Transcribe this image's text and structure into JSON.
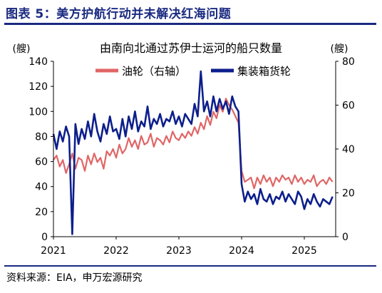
{
  "figure_title": "图表 5：美方护航行动并未解决红海问题",
  "source": "资料来源：EIA，申万宏源研究",
  "chart_data": {
    "type": "line",
    "title": "由南向北通过苏伊士运河的船只数量",
    "left_unit": "(艘)",
    "right_unit": "(艘)",
    "left_ylim": [
      0,
      140
    ],
    "left_ticks": [
      "0",
      "20",
      "40",
      "60",
      "80",
      "100",
      "120",
      "140"
    ],
    "right_ylim": [
      0,
      80
    ],
    "right_ticks": [
      "0",
      "20",
      "40",
      "60",
      "80"
    ],
    "xlim": [
      2021.0,
      2025.5
    ],
    "x_ticks": [
      {
        "value": 2021,
        "label": "2021"
      },
      {
        "value": 2022,
        "label": "2022"
      },
      {
        "value": 2023,
        "label": "2023"
      },
      {
        "value": 2024,
        "label": "2024"
      },
      {
        "value": 2025,
        "label": "2025"
      }
    ],
    "colors": {
      "tanker": "#e06666",
      "container": "#0d1f8c",
      "axis": "#000000"
    },
    "series": [
      {
        "name": "油轮（右轴）",
        "axis": "right",
        "x": [
          2021.0,
          2021.05,
          2021.1,
          2021.15,
          2021.2,
          2021.25,
          2021.3,
          2021.35,
          2021.4,
          2021.45,
          2021.5,
          2021.55,
          2021.6,
          2021.65,
          2021.7,
          2021.75,
          2021.8,
          2021.85,
          2021.9,
          2021.95,
          2022.0,
          2022.05,
          2022.1,
          2022.15,
          2022.2,
          2022.25,
          2022.3,
          2022.35,
          2022.4,
          2022.45,
          2022.5,
          2022.55,
          2022.6,
          2022.65,
          2022.7,
          2022.75,
          2022.8,
          2022.85,
          2022.9,
          2022.95,
          2023.0,
          2023.05,
          2023.1,
          2023.15,
          2023.2,
          2023.25,
          2023.3,
          2023.35,
          2023.4,
          2023.45,
          2023.5,
          2023.55,
          2023.6,
          2023.65,
          2023.7,
          2023.75,
          2023.8,
          2023.85,
          2023.9,
          2023.95,
          2024.0,
          2024.05,
          2024.1,
          2024.15,
          2024.2,
          2024.25,
          2024.3,
          2024.35,
          2024.4,
          2024.45,
          2024.5,
          2024.55,
          2024.6,
          2024.65,
          2024.7,
          2024.75,
          2024.8,
          2024.85,
          2024.9,
          2024.95,
          2025.0,
          2025.05,
          2025.1,
          2025.15,
          2025.2,
          2025.25,
          2025.3,
          2025.35,
          2025.4,
          2025.45
        ],
        "values": [
          35,
          37,
          32,
          35,
          29,
          33,
          38,
          31,
          36,
          35,
          30,
          37,
          33,
          38,
          34,
          36,
          31,
          39,
          37,
          40,
          36,
          42,
          38,
          40,
          45,
          41,
          44,
          40,
          46,
          42,
          43,
          47,
          41,
          45,
          44,
          42,
          46,
          43,
          48,
          45,
          44,
          47,
          45,
          48,
          46,
          50,
          47,
          52,
          49,
          55,
          51,
          57,
          54,
          60,
          57,
          63,
          60,
          58,
          55,
          52,
          30,
          25,
          26,
          27,
          22,
          27,
          24,
          28,
          25,
          27,
          23,
          27,
          25,
          28,
          26,
          27,
          24,
          28,
          25,
          27,
          24,
          26,
          25,
          28,
          23,
          25,
          26,
          24,
          27,
          25
        ]
      },
      {
        "name": "集装箱货轮",
        "axis": "left",
        "x": [
          2021.0,
          2021.05,
          2021.1,
          2021.15,
          2021.2,
          2021.25,
          2021.3,
          2021.35,
          2021.4,
          2021.45,
          2021.5,
          2021.55,
          2021.6,
          2021.65,
          2021.7,
          2021.75,
          2021.8,
          2021.85,
          2021.9,
          2021.95,
          2022.0,
          2022.05,
          2022.1,
          2022.15,
          2022.2,
          2022.25,
          2022.3,
          2022.35,
          2022.4,
          2022.45,
          2022.5,
          2022.55,
          2022.6,
          2022.65,
          2022.7,
          2022.75,
          2022.8,
          2022.85,
          2022.9,
          2022.95,
          2023.0,
          2023.05,
          2023.1,
          2023.15,
          2023.2,
          2023.25,
          2023.3,
          2023.35,
          2023.4,
          2023.45,
          2023.5,
          2023.55,
          2023.6,
          2023.65,
          2023.7,
          2023.75,
          2023.8,
          2023.85,
          2023.9,
          2023.95,
          2024.0,
          2024.05,
          2024.1,
          2024.15,
          2024.2,
          2024.25,
          2024.3,
          2024.35,
          2024.4,
          2024.45,
          2024.5,
          2024.55,
          2024.6,
          2024.65,
          2024.7,
          2024.75,
          2024.8,
          2024.85,
          2024.9,
          2024.95,
          2025.0,
          2025.05,
          2025.1,
          2025.15,
          2025.2,
          2025.25,
          2025.3,
          2025.35,
          2025.4,
          2025.45
        ],
        "values": [
          82,
          70,
          84,
          76,
          88,
          80,
          2,
          90,
          74,
          86,
          78,
          92,
          80,
          98,
          84,
          76,
          90,
          82,
          96,
          84,
          86,
          78,
          94,
          80,
          96,
          86,
          100,
          84,
          92,
          88,
          104,
          86,
          94,
          90,
          98,
          88,
          94,
          92,
          100,
          90,
          96,
          88,
          98,
          94,
          90,
          106,
          96,
          132,
          100,
          108,
          96,
          112,
          100,
          110,
          102,
          108,
          98,
          112,
          104,
          100,
          42,
          28,
          36,
          30,
          34,
          26,
          38,
          30,
          28,
          34,
          26,
          32,
          30,
          36,
          28,
          34,
          30,
          26,
          36,
          32,
          22,
          30,
          26,
          34,
          28,
          24,
          30,
          28,
          26,
          32
        ]
      }
    ]
  }
}
